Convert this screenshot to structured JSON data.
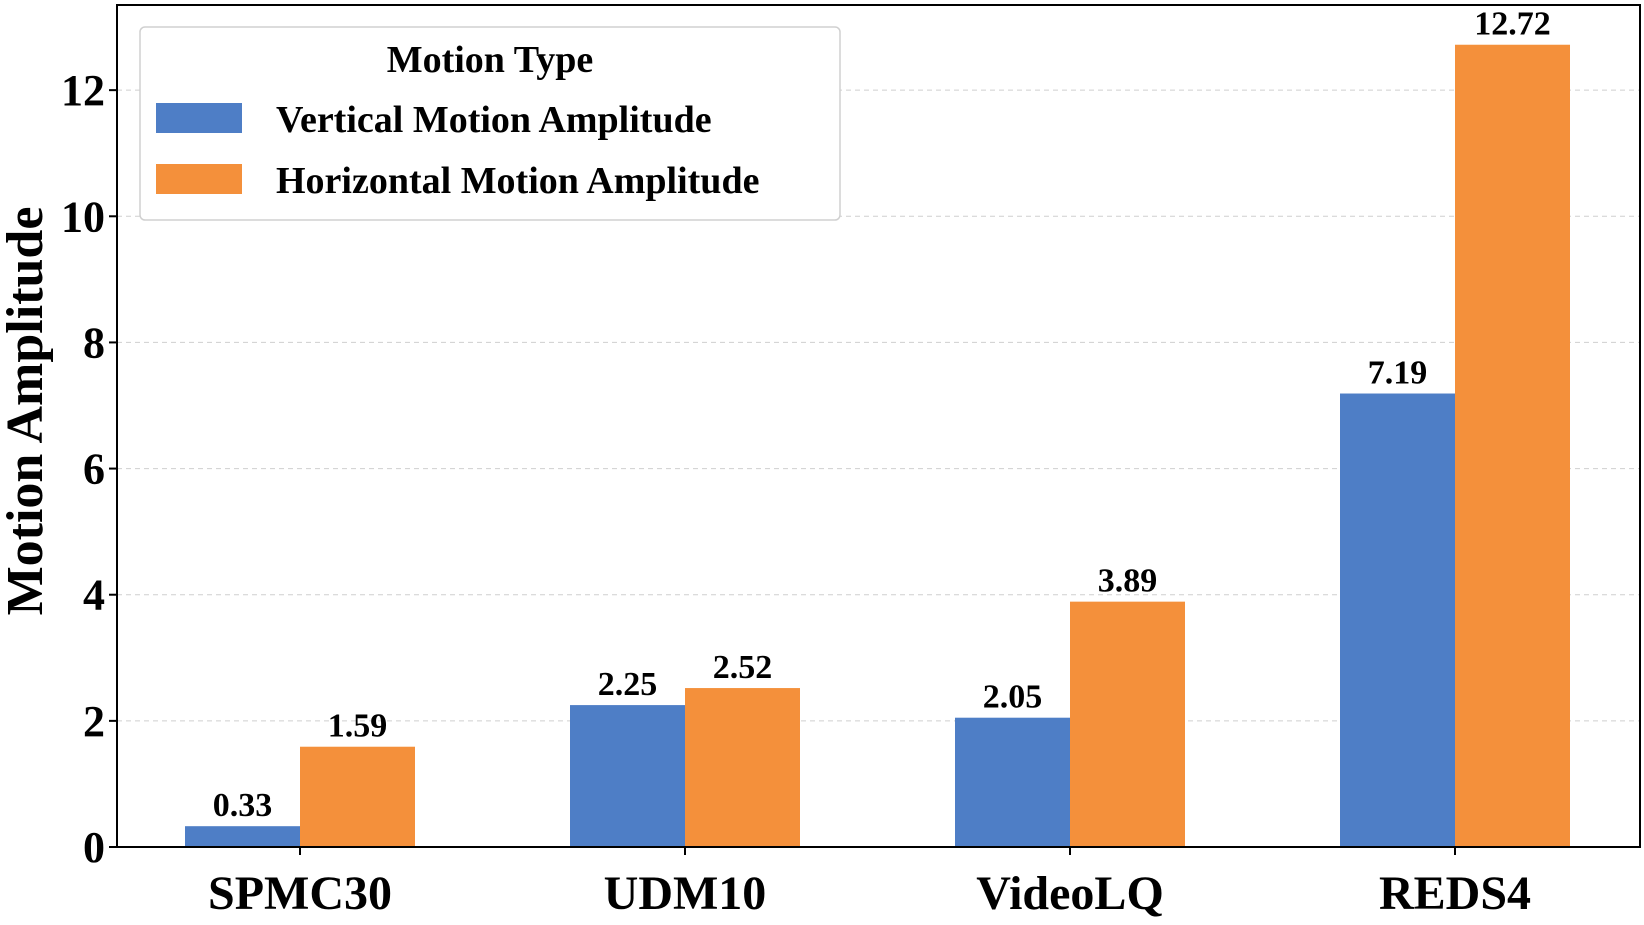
{
  "chart_data": {
    "type": "bar",
    "categories": [
      "SPMC30",
      "UDM10",
      "VideoLQ",
      "REDS4"
    ],
    "series": [
      {
        "name": "Vertical Motion Amplitude",
        "values": [
          0.33,
          2.25,
          2.05,
          7.19
        ],
        "color": "#4e7ec6"
      },
      {
        "name": "Horizontal Motion Amplitude",
        "values": [
          1.59,
          2.52,
          3.89,
          12.72
        ],
        "color": "#f4903b"
      }
    ],
    "data_labels": [
      [
        "0.33",
        "2.25",
        "2.05",
        "7.19"
      ],
      [
        "1.59",
        "2.52",
        "3.89",
        "12.72"
      ]
    ],
    "title": "",
    "xlabel": "",
    "ylabel": "Motion Amplitude",
    "ylim": [
      0,
      13.35
    ],
    "yticks": [
      0,
      2,
      4,
      6,
      8,
      10,
      12
    ],
    "ytick_labels": [
      "0",
      "2",
      "4",
      "6",
      "8",
      "10",
      "12"
    ],
    "grid": true,
    "legend": {
      "title": "Motion Type",
      "position": "top-left"
    }
  }
}
